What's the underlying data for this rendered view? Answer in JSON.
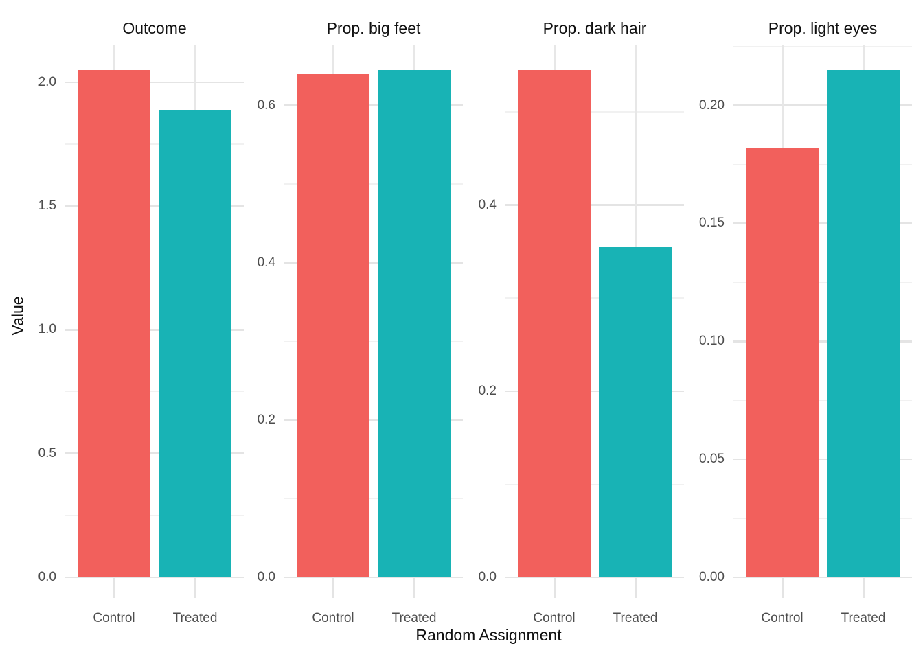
{
  "chart_data": {
    "type": "bar",
    "faceted": true,
    "title": "",
    "xlabel": "Random Assignment",
    "ylabel": "Value",
    "categories": [
      "Control",
      "Treated"
    ],
    "bar_colors": {
      "Control": "#F2605C",
      "Treated": "#18B3B5"
    },
    "legend_position": "none",
    "grid": "major+minor",
    "bar_rel_width": 0.9,
    "y_headroom_factor": 1.05,
    "facets": [
      {
        "title": "Outcome",
        "values": [
          2.05,
          1.89
        ],
        "y_tick_step": 0.5,
        "y_ticks": [
          {
            "value": 0.0,
            "label": "0.0"
          },
          {
            "value": 0.5,
            "label": "0.5"
          },
          {
            "value": 1.0,
            "label": "1.0"
          },
          {
            "value": 1.5,
            "label": "1.5"
          },
          {
            "value": 2.0,
            "label": "2.0"
          }
        ]
      },
      {
        "title": "Prop. big feet",
        "values": [
          0.64,
          0.645
        ],
        "y_tick_step": 0.2,
        "y_ticks": [
          {
            "value": 0.0,
            "label": "0.0"
          },
          {
            "value": 0.2,
            "label": "0.2"
          },
          {
            "value": 0.4,
            "label": "0.4"
          },
          {
            "value": 0.6,
            "label": "0.6"
          }
        ]
      },
      {
        "title": "Prop. dark hair",
        "values": [
          0.545,
          0.355
        ],
        "y_tick_step": 0.2,
        "y_ticks": [
          {
            "value": 0.0,
            "label": "0.0"
          },
          {
            "value": 0.2,
            "label": "0.2"
          },
          {
            "value": 0.4,
            "label": "0.4"
          }
        ]
      },
      {
        "title": "Prop. light eyes",
        "values": [
          0.182,
          0.215
        ],
        "y_tick_step": 0.05,
        "y_ticks": [
          {
            "value": 0.0,
            "label": "0.00"
          },
          {
            "value": 0.05,
            "label": "0.05"
          },
          {
            "value": 0.1,
            "label": "0.10"
          },
          {
            "value": 0.15,
            "label": "0.15"
          },
          {
            "value": 0.2,
            "label": "0.20"
          }
        ]
      }
    ]
  },
  "colors": {
    "control_bar": "#F2605C",
    "treated_bar": "#18B3B5",
    "grid_major": "#E4E4E4",
    "grid_minor": "#F1F1F1",
    "tick_mark": "#E4E4E4",
    "tick_label_text": "#4D4D4D",
    "title_text": "#111111",
    "background": "#FFFFFF"
  }
}
